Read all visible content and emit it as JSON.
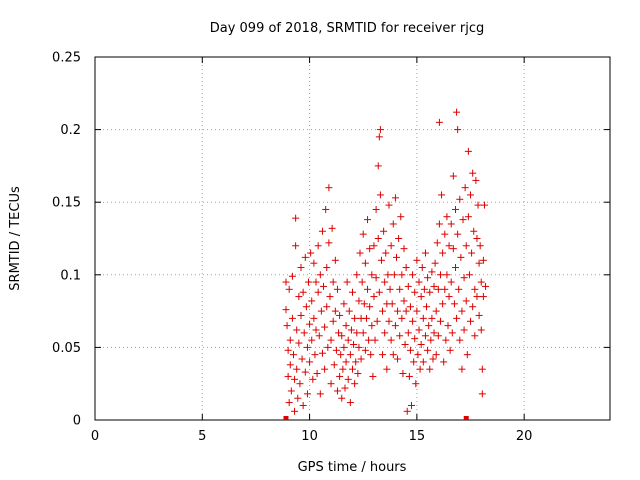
{
  "chart_data": {
    "type": "scatter",
    "title": "Day 099 of 2018, SRMTID for receiver rjcg",
    "xlabel": "GPS time / hours",
    "ylabel": "SRMTID / TECUs",
    "xlim": [
      0,
      24
    ],
    "ylim": [
      0,
      0.25
    ],
    "xticks": [
      0,
      5,
      10,
      15,
      20
    ],
    "xtick_labels": [
      "0",
      "5",
      "10",
      "15",
      "20"
    ],
    "yticks": [
      0,
      0.05,
      0.1,
      0.15,
      0.2,
      0.25
    ],
    "ytick_labels": [
      "0",
      "0.05",
      "0.1",
      "0.15",
      "0.2",
      "0.25"
    ],
    "grid": true,
    "legend": "none",
    "marker": "plus",
    "series_color": "#dd0000",
    "data_span_markers": [
      {
        "x": 8.9,
        "y": 0
      },
      {
        "x": 17.3,
        "y": 0
      }
    ],
    "series": [
      {
        "name": "SRMTID",
        "points": [
          [
            8.9,
            0.095
          ],
          [
            8.9,
            0.076
          ],
          [
            8.95,
            0.065
          ],
          [
            9.0,
            0.048
          ],
          [
            9.0,
            0.03
          ],
          [
            9.05,
            0.012
          ],
          [
            9.05,
            0.09
          ],
          [
            9.1,
            0.055
          ],
          [
            9.1,
            0.038
          ],
          [
            9.15,
            0.02
          ],
          [
            9.2,
            0.099
          ],
          [
            9.2,
            0.07
          ],
          [
            9.25,
            0.045
          ],
          [
            9.3,
            0.028
          ],
          [
            9.3,
            0.006
          ],
          [
            9.35,
            0.139
          ],
          [
            9.35,
            0.12
          ],
          [
            9.4,
            0.062
          ],
          [
            9.4,
            0.035
          ],
          [
            9.45,
            0.015
          ],
          [
            9.5,
            0.085
          ],
          [
            9.5,
            0.053
          ],
          [
            9.55,
            0.025
          ],
          [
            9.6,
            0.105
          ],
          [
            9.6,
            0.072
          ],
          [
            9.65,
            0.042
          ],
          [
            9.7,
            0.01
          ],
          [
            9.7,
            0.088
          ],
          [
            9.75,
            0.06
          ],
          [
            9.8,
            0.033
          ],
          [
            9.8,
            0.112
          ],
          [
            9.85,
            0.078
          ],
          [
            9.9,
            0.05
          ],
          [
            9.9,
            0.018
          ],
          [
            9.95,
            0.095
          ],
          [
            10.0,
            0.066
          ],
          [
            10.0,
            0.04
          ],
          [
            10.05,
            0.115
          ],
          [
            10.1,
            0.082
          ],
          [
            10.1,
            0.055
          ],
          [
            10.15,
            0.028
          ],
          [
            10.2,
            0.108
          ],
          [
            10.2,
            0.07
          ],
          [
            10.25,
            0.045
          ],
          [
            10.3,
            0.095
          ],
          [
            10.3,
            0.062
          ],
          [
            10.35,
            0.032
          ],
          [
            10.4,
            0.12
          ],
          [
            10.4,
            0.088
          ],
          [
            10.45,
            0.058
          ],
          [
            10.5,
            0.018
          ],
          [
            10.5,
            0.1
          ],
          [
            10.55,
            0.075
          ],
          [
            10.6,
            0.046
          ],
          [
            10.6,
            0.13
          ],
          [
            10.65,
            0.092
          ],
          [
            10.7,
            0.064
          ],
          [
            10.7,
            0.035
          ],
          [
            10.75,
            0.145
          ],
          [
            10.8,
            0.105
          ],
          [
            10.8,
            0.078
          ],
          [
            10.85,
            0.05
          ],
          [
            10.9,
            0.16
          ],
          [
            10.9,
            0.122
          ],
          [
            10.95,
            0.085
          ],
          [
            11.0,
            0.055
          ],
          [
            11.0,
            0.025
          ],
          [
            11.05,
            0.132
          ],
          [
            11.1,
            0.095
          ],
          [
            11.1,
            0.068
          ],
          [
            11.15,
            0.038
          ],
          [
            11.2,
            0.11
          ],
          [
            11.2,
            0.075
          ],
          [
            11.25,
            0.048
          ],
          [
            11.3,
            0.02
          ],
          [
            11.3,
            0.09
          ],
          [
            11.35,
            0.06
          ],
          [
            11.4,
            0.03
          ],
          [
            11.4,
            0.072
          ],
          [
            11.45,
            0.045
          ],
          [
            11.5,
            0.015
          ],
          [
            11.5,
            0.058
          ],
          [
            11.55,
            0.035
          ],
          [
            11.6,
            0.08
          ],
          [
            11.6,
            0.05
          ],
          [
            11.65,
            0.022
          ],
          [
            11.7,
            0.065
          ],
          [
            11.7,
            0.04
          ],
          [
            11.75,
            0.095
          ],
          [
            11.8,
            0.055
          ],
          [
            11.8,
            0.028
          ],
          [
            11.85,
            0.075
          ],
          [
            11.9,
            0.045
          ],
          [
            11.9,
            0.012
          ],
          [
            11.95,
            0.062
          ],
          [
            12.0,
            0.035
          ],
          [
            12.0,
            0.088
          ],
          [
            12.05,
            0.052
          ],
          [
            12.1,
            0.025
          ],
          [
            12.1,
            0.07
          ],
          [
            12.15,
            0.04
          ],
          [
            12.2,
            0.1
          ],
          [
            12.2,
            0.06
          ],
          [
            12.25,
            0.032
          ],
          [
            12.3,
            0.082
          ],
          [
            12.3,
            0.05
          ],
          [
            12.35,
            0.115
          ],
          [
            12.4,
            0.07
          ],
          [
            12.4,
            0.042
          ],
          [
            12.45,
            0.095
          ],
          [
            12.5,
            0.06
          ],
          [
            12.5,
            0.128
          ],
          [
            12.55,
            0.08
          ],
          [
            12.6,
            0.048
          ],
          [
            12.6,
            0.108
          ],
          [
            12.65,
            0.07
          ],
          [
            12.7,
            0.138
          ],
          [
            12.7,
            0.09
          ],
          [
            12.75,
            0.055
          ],
          [
            12.8,
            0.118
          ],
          [
            12.8,
            0.078
          ],
          [
            12.85,
            0.045
          ],
          [
            12.9,
            0.1
          ],
          [
            12.9,
            0.065
          ],
          [
            12.95,
            0.03
          ],
          [
            13.0,
            0.12
          ],
          [
            13.0,
            0.085
          ],
          [
            13.05,
            0.055
          ],
          [
            13.1,
            0.145
          ],
          [
            13.1,
            0.098
          ],
          [
            13.15,
            0.068
          ],
          [
            13.2,
            0.175
          ],
          [
            13.2,
            0.125
          ],
          [
            13.25,
            0.195
          ],
          [
            13.25,
            0.088
          ],
          [
            13.3,
            0.2
          ],
          [
            13.3,
            0.155
          ],
          [
            13.35,
            0.11
          ],
          [
            13.4,
            0.075
          ],
          [
            13.4,
            0.045
          ],
          [
            13.45,
            0.13
          ],
          [
            13.5,
            0.095
          ],
          [
            13.5,
            0.06
          ],
          [
            13.55,
            0.115
          ],
          [
            13.6,
            0.08
          ],
          [
            13.6,
            0.035
          ],
          [
            13.65,
            0.1
          ],
          [
            13.7,
            0.068
          ],
          [
            13.7,
            0.148
          ],
          [
            13.75,
            0.09
          ],
          [
            13.8,
            0.055
          ],
          [
            13.8,
            0.12
          ],
          [
            13.85,
            0.08
          ],
          [
            13.9,
            0.045
          ],
          [
            13.9,
            0.135
          ],
          [
            13.95,
            0.1
          ],
          [
            14.0,
            0.065
          ],
          [
            14.0,
            0.153
          ],
          [
            14.05,
            0.112
          ],
          [
            14.1,
            0.075
          ],
          [
            14.1,
            0.042
          ],
          [
            14.15,
            0.125
          ],
          [
            14.2,
            0.09
          ],
          [
            14.2,
            0.058
          ],
          [
            14.25,
            0.14
          ],
          [
            14.3,
            0.1
          ],
          [
            14.3,
            0.07
          ],
          [
            14.35,
            0.032
          ],
          [
            14.4,
            0.118
          ],
          [
            14.4,
            0.082
          ],
          [
            14.45,
            0.052
          ],
          [
            14.5,
            0.105
          ],
          [
            14.5,
            0.075
          ],
          [
            14.55,
            0.006
          ],
          [
            14.6,
            0.092
          ],
          [
            14.6,
            0.06
          ],
          [
            14.65,
            0.03
          ],
          [
            14.7,
            0.078
          ],
          [
            14.7,
            0.048
          ],
          [
            14.75,
            0.01
          ],
          [
            14.8,
            0.1
          ],
          [
            14.8,
            0.068
          ],
          [
            14.85,
            0.04
          ],
          [
            14.9,
            0.088
          ],
          [
            14.9,
            0.056
          ],
          [
            14.95,
            0.025
          ],
          [
            15.0,
            0.11
          ],
          [
            15.0,
            0.075
          ],
          [
            15.05,
            0.045
          ],
          [
            15.1,
            0.095
          ],
          [
            15.1,
            0.062
          ],
          [
            15.15,
            0.035
          ],
          [
            15.2,
            0.085
          ],
          [
            15.2,
            0.052
          ],
          [
            15.25,
            0.105
          ],
          [
            15.3,
            0.07
          ],
          [
            15.3,
            0.04
          ],
          [
            15.35,
            0.09
          ],
          [
            15.4,
            0.058
          ],
          [
            15.4,
            0.115
          ],
          [
            15.45,
            0.078
          ],
          [
            15.5,
            0.048
          ],
          [
            15.5,
            0.098
          ],
          [
            15.55,
            0.065
          ],
          [
            15.6,
            0.035
          ],
          [
            15.6,
            0.088
          ],
          [
            15.65,
            0.055
          ],
          [
            15.7,
            0.102
          ],
          [
            15.7,
            0.07
          ],
          [
            15.75,
            0.042
          ],
          [
            15.8,
            0.092
          ],
          [
            15.8,
            0.06
          ],
          [
            15.85,
            0.108
          ],
          [
            15.9,
            0.075
          ],
          [
            15.9,
            0.045
          ],
          [
            15.95,
            0.122
          ],
          [
            16.0,
            0.09
          ],
          [
            16.0,
            0.058
          ],
          [
            16.05,
            0.205
          ],
          [
            16.05,
            0.135
          ],
          [
            16.1,
            0.1
          ],
          [
            16.1,
            0.068
          ],
          [
            16.15,
            0.155
          ],
          [
            16.2,
            0.115
          ],
          [
            16.2,
            0.08
          ],
          [
            16.25,
            0.04
          ],
          [
            16.3,
            0.128
          ],
          [
            16.3,
            0.09
          ],
          [
            16.35,
            0.055
          ],
          [
            16.4,
            0.14
          ],
          [
            16.4,
            0.1
          ],
          [
            16.45,
            0.065
          ],
          [
            16.5,
            0.12
          ],
          [
            16.5,
            0.085
          ],
          [
            16.55,
            0.048
          ],
          [
            16.6,
            0.135
          ],
          [
            16.6,
            0.095
          ],
          [
            16.65,
            0.06
          ],
          [
            16.7,
            0.168
          ],
          [
            16.7,
            0.118
          ],
          [
            16.75,
            0.08
          ],
          [
            16.8,
            0.145
          ],
          [
            16.8,
            0.105
          ],
          [
            16.85,
            0.07
          ],
          [
            16.85,
            0.212
          ],
          [
            16.9,
            0.2
          ],
          [
            16.9,
            0.128
          ],
          [
            16.95,
            0.09
          ],
          [
            17.0,
            0.055
          ],
          [
            17.0,
            0.152
          ],
          [
            17.05,
            0.112
          ],
          [
            17.1,
            0.075
          ],
          [
            17.1,
            0.035
          ],
          [
            17.15,
            0.138
          ],
          [
            17.2,
            0.098
          ],
          [
            17.2,
            0.062
          ],
          [
            17.25,
            0.16
          ],
          [
            17.3,
            0.12
          ],
          [
            17.3,
            0.082
          ],
          [
            17.35,
            0.045
          ],
          [
            17.4,
            0.185
          ],
          [
            17.4,
            0.14
          ],
          [
            17.45,
            0.1
          ],
          [
            17.5,
            0.068
          ],
          [
            17.5,
            0.155
          ],
          [
            17.55,
            0.115
          ],
          [
            17.6,
            0.078
          ],
          [
            17.6,
            0.17
          ],
          [
            17.65,
            0.13
          ],
          [
            17.7,
            0.09
          ],
          [
            17.7,
            0.058
          ],
          [
            17.75,
            0.165
          ],
          [
            17.8,
            0.125
          ],
          [
            17.8,
            0.085
          ],
          [
            17.85,
            0.148
          ],
          [
            17.9,
            0.108
          ],
          [
            17.9,
            0.072
          ],
          [
            17.95,
            0.12
          ],
          [
            18.0,
            0.095
          ],
          [
            18.0,
            0.062
          ],
          [
            18.05,
            0.035
          ],
          [
            18.05,
            0.018
          ],
          [
            18.1,
            0.11
          ],
          [
            18.1,
            0.085
          ],
          [
            18.15,
            0.148
          ],
          [
            18.2,
            0.092
          ]
        ]
      }
    ]
  }
}
